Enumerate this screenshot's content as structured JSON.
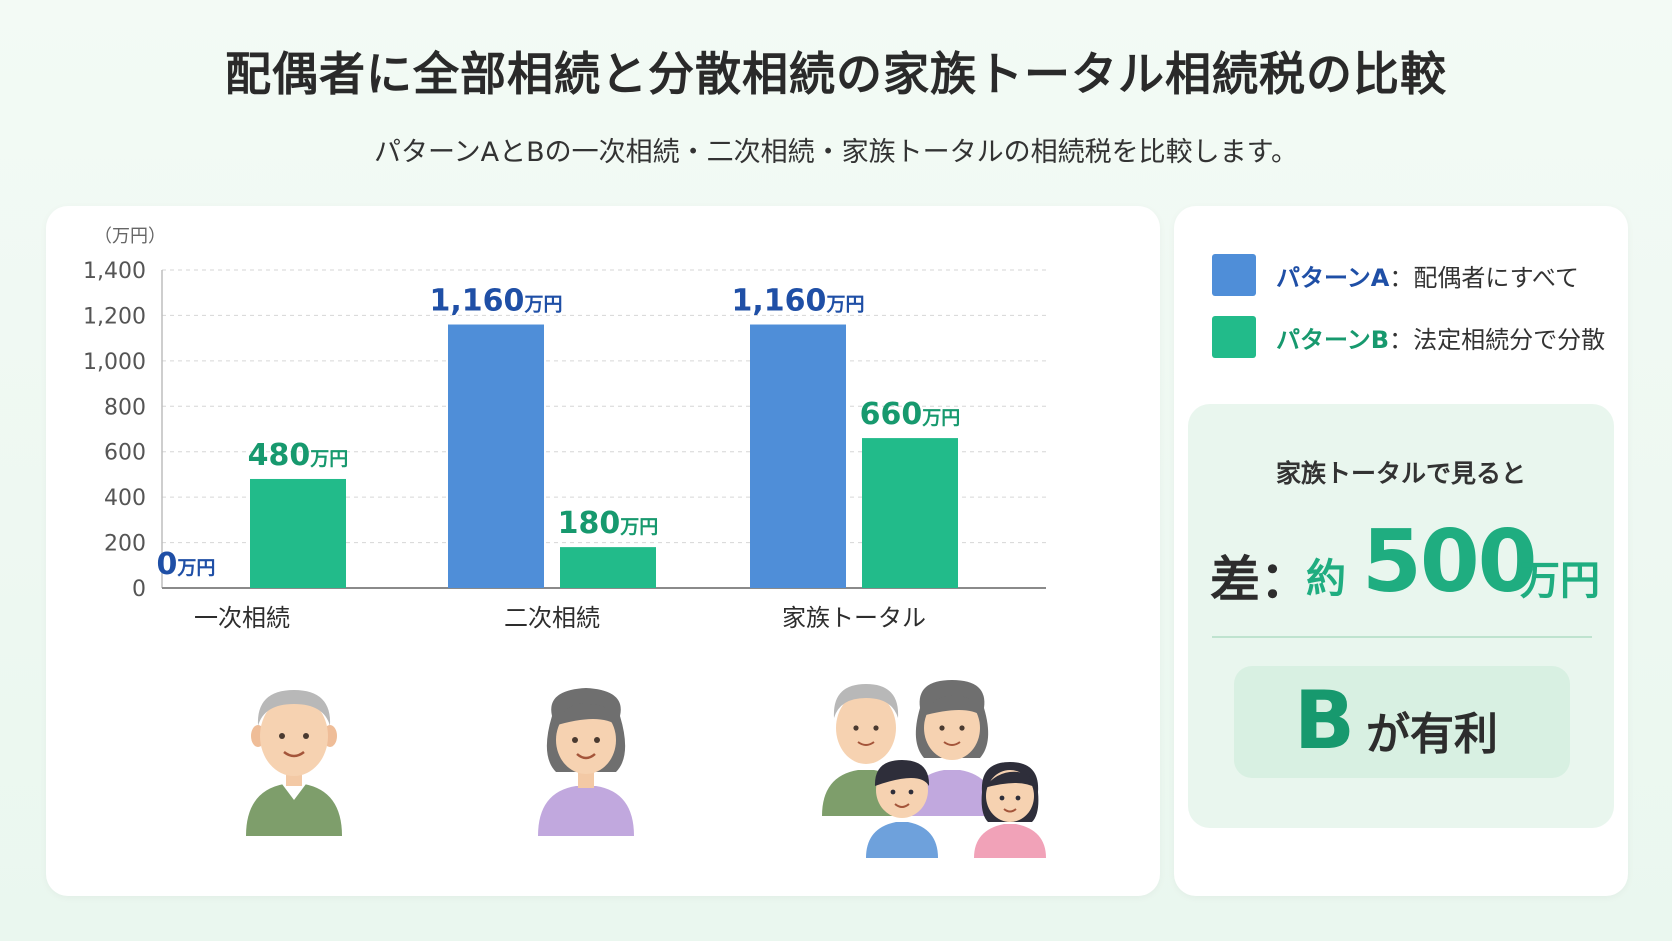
{
  "page": {
    "title": "配偶者に全部相続と分散相続の家族トータル相続税の比較",
    "subtitle": "パターンAとBの一次相続・二次相続・家族トータルの相続税を比較します。"
  },
  "colors": {
    "pattern_a": "#4f8ed8",
    "pattern_b": "#22bb8a",
    "pattern_a_label": "#1f4fa6",
    "pattern_b_label": "#17996e"
  },
  "legend": [
    {
      "name": "パターンA",
      "desc": "：配偶者にすべて",
      "color": "#4f8ed8"
    },
    {
      "name": "パターンB",
      "desc": "：法定相続分で分散",
      "color": "#22bb8a"
    }
  ],
  "summary": {
    "heading": "家族トータルで見ると",
    "diff_label": "差：",
    "diff_approx": "約",
    "diff_value": "500",
    "diff_unit": "万円",
    "verdict_letter": "B",
    "verdict_text": "が有利"
  },
  "chart_data": {
    "type": "bar",
    "unit_label": "（万円）",
    "categories": [
      "一次相続",
      "二次相続",
      "家族トータル"
    ],
    "series": [
      {
        "name": "パターンA",
        "values": [
          0,
          1160,
          1160
        ],
        "value_labels": [
          "0",
          "1,160",
          "1,160"
        ]
      },
      {
        "name": "パターンB",
        "values": [
          480,
          180,
          660
        ],
        "value_labels": [
          "480",
          "180",
          "660"
        ]
      }
    ],
    "label_unit": "万円",
    "ylim": [
      0,
      1400
    ],
    "yticks": [
      0,
      200,
      400,
      600,
      800,
      1000,
      1200,
      1400
    ],
    "ytick_labels": [
      "0",
      "200",
      "400",
      "600",
      "800",
      "1,000",
      "1,200",
      "1,400"
    ],
    "grid": true,
    "legend_position": "right"
  },
  "illustrations": [
    {
      "category": "一次相続",
      "icon": "grandfather-icon"
    },
    {
      "category": "二次相続",
      "icon": "grandmother-icon"
    },
    {
      "category": "家族トータル",
      "icon": "family-icon"
    }
  ]
}
